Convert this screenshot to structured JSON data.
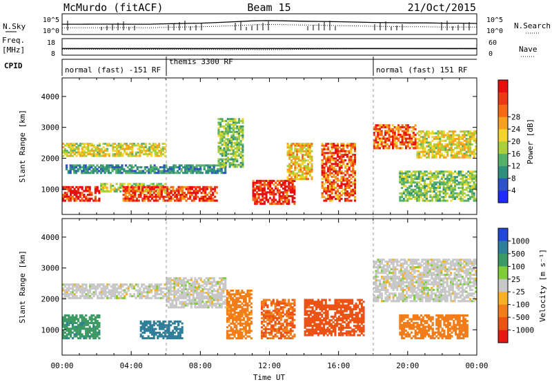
{
  "header": {
    "station": "McMurdo (fitACF)",
    "beam": "Beam 15",
    "date": "21/Oct/2015"
  },
  "noise_panel": {
    "left_label": "N.Sky",
    "right_label": "N.Search",
    "left_ticks": [
      "10^5",
      "10^0"
    ],
    "right_ticks": [
      "10^5",
      "10^0"
    ]
  },
  "freq_panel": {
    "left_label_1": "Freq.",
    "left_label_2": "[MHz]",
    "right_label": "Nave",
    "left_ticks": [
      "18",
      "8"
    ],
    "right_ticks": [
      "60",
      "0"
    ]
  },
  "cpid_panel": {
    "label": "CPID",
    "segments": [
      {
        "start_hour": 0,
        "end_hour": 6,
        "name": "normal (fast) -151 RF"
      },
      {
        "start_hour": 6,
        "end_hour": 18,
        "name": "themis 3300 RF"
      },
      {
        "start_hour": 18,
        "end_hour": 24,
        "name": "normal (fast) 151 RF"
      }
    ]
  },
  "axes": {
    "xlabel": "Time UT",
    "x_ticks": [
      "00:00",
      "04:00",
      "08:00",
      "12:00",
      "16:00",
      "20:00",
      "00:00"
    ],
    "ylabel": "Slant Range [km]",
    "y_ticks": [
      "1000",
      "2000",
      "3000",
      "4000"
    ]
  },
  "colorbars": {
    "power": {
      "label": "Power [dB]",
      "ticks": [
        "4",
        "8",
        "12",
        "16",
        "20",
        "24",
        "28"
      ],
      "colors": [
        "#1f2bff",
        "#2d52c8",
        "#2f8f7d",
        "#57b06a",
        "#a9cf3c",
        "#f2d42b",
        "#f7a21f",
        "#f46a15",
        "#ee3a14",
        "#e60f10"
      ]
    },
    "velocity": {
      "label": "Velocity [m s⁻¹]",
      "ticks": [
        "1000",
        "500",
        "100",
        "25",
        "-25",
        "-100",
        "-500",
        "-1000"
      ],
      "colors": [
        "#2348d8",
        "#2f7f9b",
        "#3e9a64",
        "#7fcd3a",
        "#c8c8c8",
        "#f7b224",
        "#f17d1b",
        "#ec5214",
        "#e41a12"
      ]
    }
  },
  "chart_data": [
    {
      "type": "line",
      "title": "",
      "x_range_hours": [
        0,
        24
      ],
      "y_scale": "log",
      "y_range": [
        1,
        100000
      ],
      "series": [
        {
          "name": "N.Sky",
          "x": [
            0,
            1,
            2,
            3,
            4,
            5,
            6,
            7,
            8,
            9,
            10,
            11,
            12,
            13,
            14,
            15,
            16,
            17,
            18,
            19,
            20,
            21,
            22,
            23,
            24
          ],
          "y": [
            300,
            300,
            320,
            320,
            300,
            300,
            400,
            500,
            600,
            900,
            1500,
            2500,
            3000,
            2500,
            2000,
            1800,
            1500,
            1200,
            900,
            800,
            700,
            700,
            600,
            600,
            500
          ]
        },
        {
          "name": "N.Search",
          "x": [
            0,
            1,
            2,
            3,
            4,
            5,
            6,
            7,
            8,
            9,
            10,
            11,
            12,
            13,
            14,
            15,
            16,
            17,
            18,
            19,
            20,
            21,
            22,
            23,
            24
          ],
          "y": [
            30,
            30,
            30,
            35,
            35,
            30,
            40,
            50,
            60,
            80,
            120,
            200,
            250,
            220,
            180,
            150,
            120,
            100,
            80,
            70,
            60,
            60,
            50,
            50,
            50
          ]
        }
      ]
    },
    {
      "type": "scatter",
      "title": "",
      "x_range_hours": [
        0,
        24
      ],
      "series": [
        {
          "name": "Freq",
          "ylim": [
            8,
            18
          ],
          "x": [
            0,
            6,
            12,
            18,
            24
          ],
          "y": [
            12,
            12,
            12,
            12,
            12
          ]
        },
        {
          "name": "Nave",
          "ylim": [
            0,
            60
          ],
          "x": [
            0,
            6,
            12,
            18,
            24
          ],
          "y": [
            22,
            21,
            20,
            24,
            23
          ]
        }
      ]
    },
    {
      "type": "heatmap",
      "title": "Power",
      "xlabel": "Time UT",
      "ylabel": "Slant Range [km]",
      "x_range_hours": [
        0,
        24
      ],
      "ylim": [
        180,
        4600
      ],
      "value_unit": "dB",
      "colorbar_range": [
        0,
        30
      ],
      "regions": [
        {
          "t0": 0.0,
          "t1": 6.0,
          "r0": 2050,
          "r1": 2500,
          "value": 16
        },
        {
          "t0": 0.0,
          "t1": 2.2,
          "r0": 600,
          "r1": 1100,
          "value": 28
        },
        {
          "t0": 2.2,
          "t1": 6.0,
          "r0": 900,
          "r1": 1200,
          "value": 14
        },
        {
          "t0": 0.2,
          "t1": 9.5,
          "r0": 1500,
          "r1": 1800,
          "value": 8
        },
        {
          "t0": 3.5,
          "t1": 9.0,
          "r0": 600,
          "r1": 1100,
          "value": 26
        },
        {
          "t0": 9.0,
          "t1": 10.5,
          "r0": 1700,
          "r1": 3300,
          "value": 12
        },
        {
          "t0": 11.0,
          "t1": 13.5,
          "r0": 500,
          "r1": 1300,
          "value": 28
        },
        {
          "t0": 13.0,
          "t1": 14.5,
          "r0": 1300,
          "r1": 2500,
          "value": 18
        },
        {
          "t0": 15.0,
          "t1": 17.0,
          "r0": 600,
          "r1": 2500,
          "value": 24
        },
        {
          "t0": 18.0,
          "t1": 20.5,
          "r0": 2300,
          "r1": 3100,
          "value": 24
        },
        {
          "t0": 20.5,
          "t1": 24.0,
          "r0": 2000,
          "r1": 2900,
          "value": 16
        },
        {
          "t0": 19.5,
          "t1": 24.0,
          "r0": 600,
          "r1": 1600,
          "value": 12
        }
      ]
    },
    {
      "type": "heatmap",
      "title": "Velocity",
      "xlabel": "Time UT",
      "ylabel": "Slant Range [km]",
      "x_range_hours": [
        0,
        24
      ],
      "ylim": [
        180,
        4600
      ],
      "value_unit": "m/s",
      "colorbar_range": [
        -1000,
        1000
      ],
      "regions": [
        {
          "t0": 0.0,
          "t1": 6.0,
          "r0": 2000,
          "r1": 2500,
          "value": 0
        },
        {
          "t0": 0.0,
          "t1": 2.2,
          "r0": 700,
          "r1": 1500,
          "value": 250
        },
        {
          "t0": 4.5,
          "t1": 7.0,
          "r0": 700,
          "r1": 1300,
          "value": 400
        },
        {
          "t0": 6.0,
          "t1": 9.5,
          "r0": 1700,
          "r1": 2700,
          "value": 0
        },
        {
          "t0": 9.5,
          "t1": 11.0,
          "r0": 700,
          "r1": 2300,
          "value": -80
        },
        {
          "t0": 11.5,
          "t1": 13.5,
          "r0": 700,
          "r1": 2000,
          "value": -300
        },
        {
          "t0": 14.0,
          "t1": 17.5,
          "r0": 800,
          "r1": 2000,
          "value": -400
        },
        {
          "t0": 18.0,
          "t1": 24.0,
          "r0": 1900,
          "r1": 3300,
          "value": 0
        },
        {
          "t0": 19.5,
          "t1": 23.5,
          "r0": 700,
          "r1": 1500,
          "value": -100
        }
      ]
    }
  ]
}
